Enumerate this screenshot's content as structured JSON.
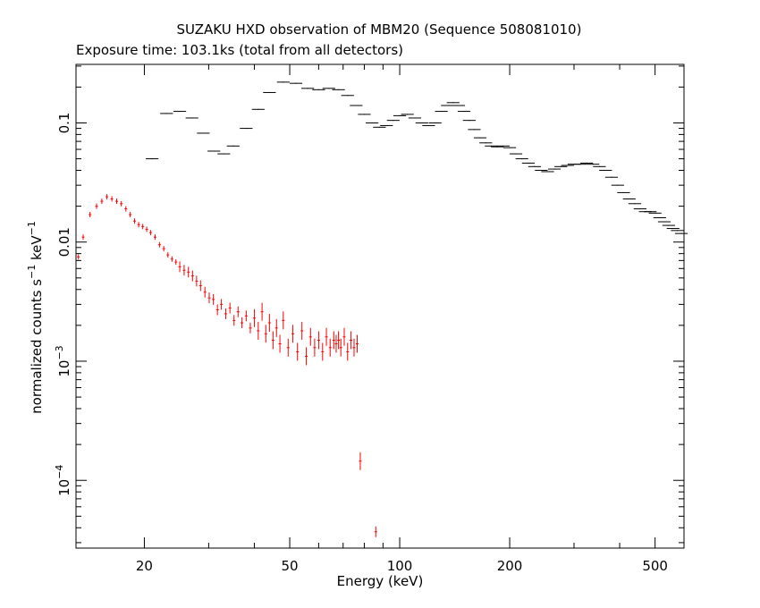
{
  "chart_data": {
    "type": "scatter",
    "title": "SUZAKU HXD observation of MBM20 (Sequence 508081010)",
    "subtitle": "Exposure time: 103.1ks (total from all detectors)",
    "xlabel": "Energy (keV)",
    "ylabel": "normalized counts s",
    "ylabel_sup1": "−1",
    "ylabel_mid": " keV",
    "ylabel_sup2": "−1",
    "x_scale": "log",
    "y_scale": "log",
    "xlim": [
      13,
      600
    ],
    "ylim": [
      2.7e-05,
      0.31
    ],
    "x_ticks": [
      {
        "value": 20,
        "label": "20"
      },
      {
        "value": 50,
        "label": "50"
      },
      {
        "value": 100,
        "label": "100"
      },
      {
        "value": 200,
        "label": "200"
      },
      {
        "value": 500,
        "label": "500"
      }
    ],
    "y_ticks": [
      {
        "value": 0.1,
        "label": "0.1",
        "sup": ""
      },
      {
        "value": 0.01,
        "label": "0.01",
        "sup": ""
      },
      {
        "value": 0.001,
        "label": "10",
        "sup": "−3"
      },
      {
        "value": 0.0001,
        "label": "10",
        "sup": "−4"
      }
    ],
    "grid": false,
    "series": [
      {
        "color": "#000000",
        "points": [
          [
            21,
            0.05
          ],
          [
            23,
            0.12
          ],
          [
            25,
            0.125
          ],
          [
            27,
            0.11
          ],
          [
            29,
            0.082
          ],
          [
            31,
            0.058
          ],
          [
            33,
            0.055
          ],
          [
            35,
            0.064
          ],
          [
            38,
            0.09
          ],
          [
            41,
            0.13
          ],
          [
            44,
            0.18
          ],
          [
            48,
            0.22
          ],
          [
            52,
            0.215
          ],
          [
            56,
            0.195
          ],
          [
            60,
            0.19
          ],
          [
            64,
            0.195
          ],
          [
            68,
            0.19
          ],
          [
            72,
            0.17
          ],
          [
            76,
            0.14
          ],
          [
            80,
            0.118
          ],
          [
            84,
            0.1
          ],
          [
            88,
            0.092
          ],
          [
            92,
            0.095
          ],
          [
            96,
            0.105
          ],
          [
            100,
            0.115
          ],
          [
            105,
            0.118
          ],
          [
            110,
            0.11
          ],
          [
            115,
            0.1
          ],
          [
            120,
            0.095
          ],
          [
            125,
            0.1
          ],
          [
            130,
            0.125
          ],
          [
            135,
            0.14
          ],
          [
            140,
            0.148
          ],
          [
            145,
            0.14
          ],
          [
            150,
            0.125
          ],
          [
            155,
            0.105
          ],
          [
            160,
            0.088
          ],
          [
            166,
            0.075
          ],
          [
            172,
            0.068
          ],
          [
            178,
            0.064
          ],
          [
            185,
            0.063
          ],
          [
            192,
            0.064
          ],
          [
            200,
            0.062
          ],
          [
            208,
            0.055
          ],
          [
            216,
            0.05
          ],
          [
            225,
            0.046
          ],
          [
            234,
            0.043
          ],
          [
            244,
            0.04
          ],
          [
            254,
            0.039
          ],
          [
            265,
            0.041
          ],
          [
            276,
            0.043
          ],
          [
            288,
            0.044
          ],
          [
            300,
            0.045
          ],
          [
            312,
            0.045
          ],
          [
            325,
            0.046
          ],
          [
            338,
            0.045
          ],
          [
            352,
            0.043
          ],
          [
            366,
            0.04
          ],
          [
            380,
            0.035
          ],
          [
            395,
            0.03
          ],
          [
            410,
            0.026
          ],
          [
            425,
            0.023
          ],
          [
            440,
            0.021
          ],
          [
            455,
            0.019
          ],
          [
            470,
            0.018
          ],
          [
            485,
            0.018
          ],
          [
            500,
            0.0175
          ],
          [
            515,
            0.016
          ],
          [
            530,
            0.0148
          ],
          [
            545,
            0.0138
          ],
          [
            560,
            0.013
          ],
          [
            575,
            0.0125
          ],
          [
            590,
            0.0118
          ]
        ]
      },
      {
        "color": "#ff0000",
        "points": [
          [
            13.2,
            0.0075
          ],
          [
            13.6,
            0.011
          ],
          [
            14.2,
            0.017
          ],
          [
            14.8,
            0.02
          ],
          [
            15.3,
            0.022
          ],
          [
            15.8,
            0.024
          ],
          [
            16.3,
            0.023
          ],
          [
            16.8,
            0.022
          ],
          [
            17.3,
            0.021
          ],
          [
            17.8,
            0.019
          ],
          [
            18.3,
            0.017
          ],
          [
            18.8,
            0.015
          ],
          [
            19.3,
            0.014
          ],
          [
            19.8,
            0.0135
          ],
          [
            20.3,
            0.0128
          ],
          [
            20.8,
            0.012
          ],
          [
            21.4,
            0.011
          ],
          [
            22,
            0.0095
          ],
          [
            22.6,
            0.0088
          ],
          [
            23.2,
            0.0078
          ],
          [
            23.8,
            0.0072
          ],
          [
            24.4,
            0.0068
          ],
          [
            25,
            0.0062
          ],
          [
            25.7,
            0.0058
          ],
          [
            26.4,
            0.0056
          ],
          [
            27.1,
            0.0052
          ],
          [
            27.8,
            0.0047
          ],
          [
            28.5,
            0.0043
          ],
          [
            29.3,
            0.0038
          ],
          [
            30.1,
            0.0034
          ],
          [
            30.9,
            0.0033
          ],
          [
            31.7,
            0.0027
          ],
          [
            32.5,
            0.003
          ],
          [
            33.4,
            0.0025
          ],
          [
            34.3,
            0.0028
          ],
          [
            35.2,
            0.0022
          ],
          [
            36.1,
            0.0026
          ],
          [
            37,
            0.0021
          ],
          [
            38,
            0.0024
          ],
          [
            39,
            0.0019
          ],
          [
            40,
            0.0023
          ],
          [
            41,
            0.0018
          ],
          [
            42,
            0.0026
          ],
          [
            43,
            0.0017
          ],
          [
            44,
            0.0021
          ],
          [
            45,
            0.0015
          ],
          [
            46,
            0.0019
          ],
          [
            47,
            0.0014
          ],
          [
            48,
            0.0022
          ],
          [
            49.5,
            0.0013
          ],
          [
            51,
            0.0017
          ],
          [
            52.5,
            0.0012
          ],
          [
            54,
            0.0018
          ],
          [
            55.5,
            0.0011
          ],
          [
            57,
            0.0016
          ],
          [
            58.5,
            0.0013
          ],
          [
            60,
            0.0015
          ],
          [
            61.5,
            0.0012
          ],
          [
            63,
            0.0016
          ],
          [
            64.5,
            0.0013
          ],
          [
            66,
            0.0015
          ],
          [
            67,
            0.0014
          ],
          [
            68,
            0.0015
          ],
          [
            69,
            0.0013
          ],
          [
            70.5,
            0.0016
          ],
          [
            72,
            0.0012
          ],
          [
            73.5,
            0.0015
          ],
          [
            75,
            0.0013
          ],
          [
            76.5,
            0.0014
          ],
          [
            78,
            0.000145
          ],
          [
            86,
            3.7e-05
          ]
        ]
      }
    ]
  }
}
